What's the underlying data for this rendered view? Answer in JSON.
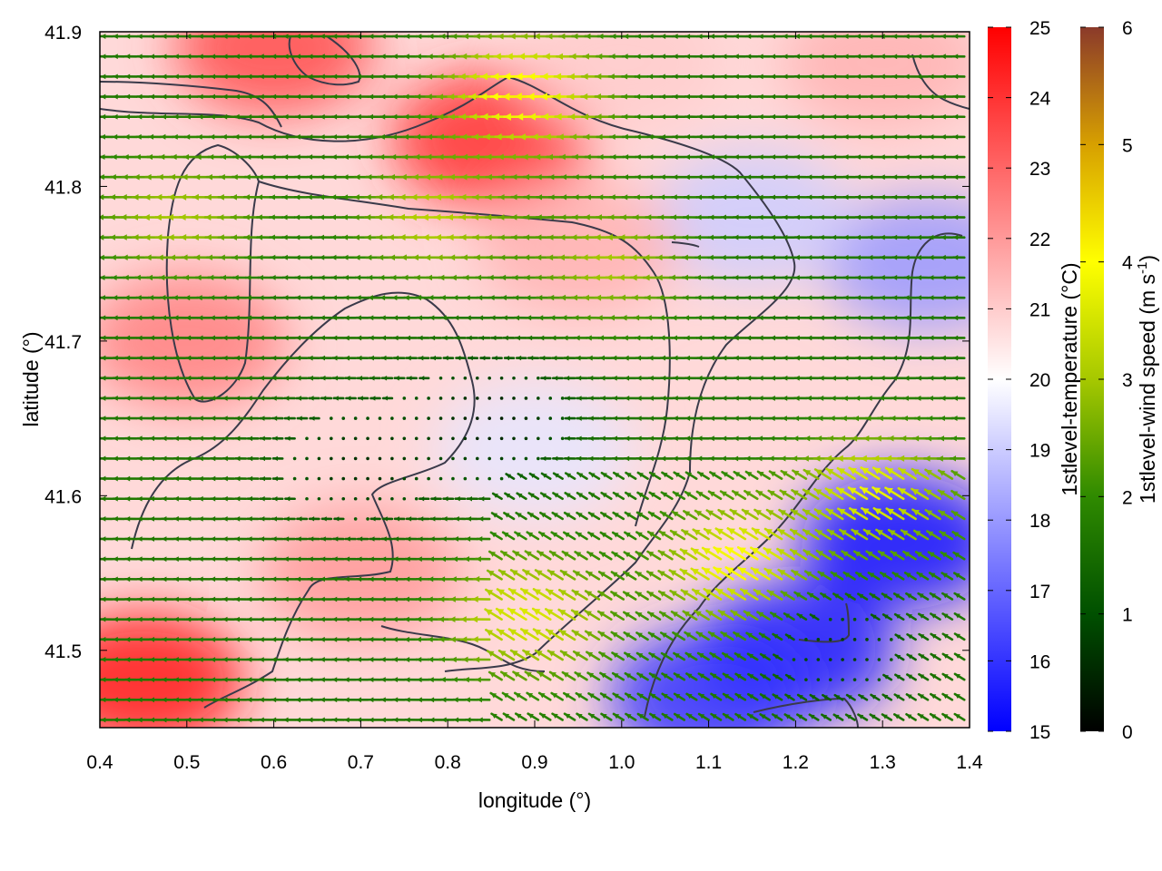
{
  "chart_data": {
    "type": "heatmap",
    "xlabel": "longitude (°)",
    "ylabel": "latitude (°)",
    "xlim": [
      0.4,
      1.4
    ],
    "ylim": [
      41.45,
      41.9
    ],
    "xticks": [
      "0.4",
      "0.5",
      "0.6",
      "0.7",
      "0.8",
      "0.9",
      "1.0",
      "1.1",
      "1.2",
      "1.3",
      "1.4"
    ],
    "yticks": [
      "41.5",
      "41.6",
      "41.7",
      "41.8",
      "41.9"
    ],
    "temperature_scale": {
      "label": "1stlevel-temperature (°C)",
      "min": 15,
      "max": 25,
      "ticks": [
        "15",
        "16",
        "17",
        "18",
        "19",
        "20",
        "21",
        "22",
        "23",
        "24",
        "25"
      ],
      "colors": [
        "#0000ff",
        "#ffffff",
        "#ff0000"
      ]
    },
    "wind_scale": {
      "label_main": "1stlevel-wind speed (m s",
      "label_sup": "-1",
      "label_end": ")",
      "min": 0,
      "max": 6,
      "ticks": [
        "0",
        "1",
        "2",
        "3",
        "4",
        "5",
        "6"
      ],
      "colors": [
        "#000000",
        "#005000",
        "#2f8a00",
        "#a6c800",
        "#ffff00",
        "#d7a000",
        "#8b3a2a"
      ]
    },
    "temperature_regions": [
      {
        "lon": 0.45,
        "lat": 41.48,
        "temp": 24.5
      },
      {
        "lon": 0.6,
        "lat": 41.89,
        "temp": 23.5
      },
      {
        "lon": 0.85,
        "lat": 41.83,
        "temp": 24
      },
      {
        "lon": 0.5,
        "lat": 41.7,
        "temp": 22.5
      },
      {
        "lon": 0.7,
        "lat": 41.55,
        "temp": 22
      },
      {
        "lon": 1.2,
        "lat": 41.5,
        "temp": 15.5
      },
      {
        "lon": 1.32,
        "lat": 41.57,
        "temp": 15.2
      },
      {
        "lon": 1.1,
        "lat": 41.47,
        "temp": 16
      },
      {
        "lon": 1.35,
        "lat": 41.75,
        "temp": 18
      },
      {
        "lon": 1.15,
        "lat": 41.78,
        "temp": 19
      },
      {
        "lon": 0.9,
        "lat": 41.63,
        "temp": 19.5
      },
      {
        "lon": 0.95,
        "lat": 41.76,
        "temp": 21.5
      },
      {
        "lon": 1.0,
        "lat": 41.88,
        "temp": 21
      },
      {
        "lon": 1.3,
        "lat": 41.88,
        "temp": 21.5
      }
    ],
    "wind_field": {
      "lon_start": 0.4,
      "lon_step": 0.014,
      "lat_start": 41.455,
      "lat_step": 0.0065,
      "mean_direction": "westward",
      "regions": [
        {
          "lon": 0.9,
          "lat": 41.86,
          "speed": 4.2
        },
        {
          "lon": 0.8,
          "lat": 41.78,
          "speed": 3.2
        },
        {
          "lon": 1.0,
          "lat": 41.75,
          "speed": 3.0
        },
        {
          "lon": 0.5,
          "lat": 41.78,
          "speed": 3.0
        },
        {
          "lon": 1.15,
          "lat": 41.55,
          "speed": 4.2
        },
        {
          "lon": 1.3,
          "lat": 41.6,
          "speed": 3.8
        },
        {
          "lon": 0.9,
          "lat": 41.52,
          "speed": 3.6
        },
        {
          "lon": 0.7,
          "lat": 41.62,
          "speed": 0.6
        },
        {
          "lon": 0.85,
          "lat": 41.65,
          "speed": 0.4
        },
        {
          "lon": 1.25,
          "lat": 41.5,
          "speed": 0.8
        }
      ]
    }
  }
}
